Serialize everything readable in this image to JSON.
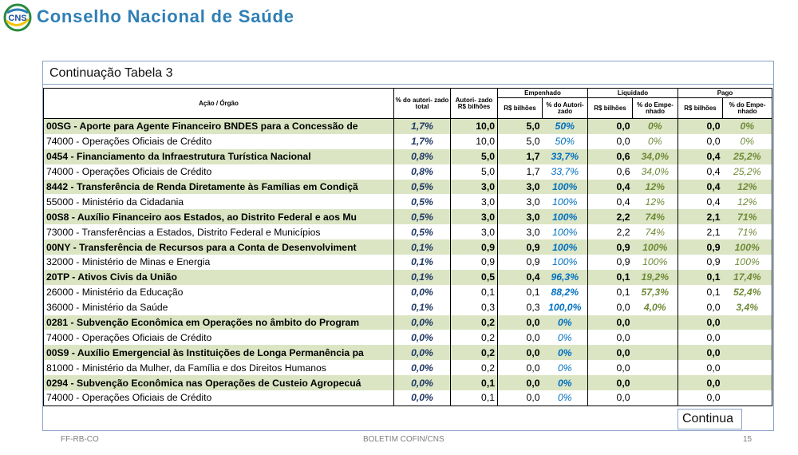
{
  "header": {
    "logo_text": "CNS",
    "org_name": "Conselho Nacional de Saúde"
  },
  "table_caption": "Continuação Tabela 3",
  "columns": {
    "acao": "Ação / Órgão",
    "pct_total": "% do autori- zado total",
    "autorizado": "Autori- zado R$ bilhões",
    "empenhado": "Empenhado",
    "liquidado": "Liquidado",
    "pago": "Pago",
    "rs_bilhoes": "R$ bilhões",
    "pct_autorizado": "% do Autori- zado",
    "pct_empenhado": "% do Empe- nhado"
  },
  "rows": [
    {
      "name": "00SG - Aporte para Agente Financeiro BNDES para a Concessão de",
      "pct": "1,7%",
      "aut": "10,0",
      "emp": "5,0",
      "emp_pct": "50%",
      "liq": "0,0",
      "liq_pct": "0%",
      "pago": "0,0",
      "pago_pct": "0%",
      "bold": true
    },
    {
      "name": "74000 - Operações Oficiais de Crédito",
      "pct": "1,7%",
      "aut": "10,0",
      "emp": "5,0",
      "emp_pct": "50%",
      "liq": "0,0",
      "liq_pct": "0%",
      "pago": "0,0",
      "pago_pct": "0%",
      "bold": false
    },
    {
      "name": "0454 - Financiamento da Infraestrutura Turística Nacional",
      "pct": "0,8%",
      "aut": "5,0",
      "emp": "1,7",
      "emp_pct": "33,7%",
      "liq": "0,6",
      "liq_pct": "34,0%",
      "pago": "0,4",
      "pago_pct": "25,2%",
      "bold": true
    },
    {
      "name": "74000 - Operações Oficiais de Crédito",
      "pct": "0,8%",
      "aut": "5,0",
      "emp": "1,7",
      "emp_pct": "33,7%",
      "liq": "0,6",
      "liq_pct": "34,0%",
      "pago": "0,4",
      "pago_pct": "25,2%",
      "bold": false
    },
    {
      "name": "8442 - Transferência de Renda Diretamente às Famílias em Condiçã",
      "pct": "0,5%",
      "aut": "3,0",
      "emp": "3,0",
      "emp_pct": "100%",
      "liq": "0,4",
      "liq_pct": "12%",
      "pago": "0,4",
      "pago_pct": "12%",
      "bold": true
    },
    {
      "name": "55000 - Ministério da Cidadania",
      "pct": "0,5%",
      "aut": "3,0",
      "emp": "3,0",
      "emp_pct": "100%",
      "liq": "0,4",
      "liq_pct": "12%",
      "pago": "0,4",
      "pago_pct": "12%",
      "bold": false
    },
    {
      "name": "00S8 - Auxílio Financeiro aos Estados, ao Distrito Federal e aos Mu",
      "pct": "0,5%",
      "aut": "3,0",
      "emp": "3,0",
      "emp_pct": "100%",
      "liq": "2,2",
      "liq_pct": "74%",
      "pago": "2,1",
      "pago_pct": "71%",
      "bold": true
    },
    {
      "name": "73000 - Transferências a Estados, Distrito Federal e Municípios",
      "pct": "0,5%",
      "aut": "3,0",
      "emp": "3,0",
      "emp_pct": "100%",
      "liq": "2,2",
      "liq_pct": "74%",
      "pago": "2,1",
      "pago_pct": "71%",
      "bold": false
    },
    {
      "name": "00NY - Transferência de Recursos para a Conta de Desenvolviment",
      "pct": "0,1%",
      "aut": "0,9",
      "emp": "0,9",
      "emp_pct": "100%",
      "liq": "0,9",
      "liq_pct": "100%",
      "pago": "0,9",
      "pago_pct": "100%",
      "bold": true
    },
    {
      "name": "32000 - Ministério de Minas e Energia",
      "pct": "0,1%",
      "aut": "0,9",
      "emp": "0,9",
      "emp_pct": "100%",
      "liq": "0,9",
      "liq_pct": "100%",
      "pago": "0,9",
      "pago_pct": "100%",
      "bold": false
    },
    {
      "name": "20TP - Ativos Civis da União",
      "pct": "0,1%",
      "aut": "0,5",
      "emp": "0,4",
      "emp_pct": "96,3%",
      "liq": "0,1",
      "liq_pct": "19,2%",
      "pago": "0,1",
      "pago_pct": "17,4%",
      "bold": true
    },
    {
      "name": "26000 - Ministério da Educação",
      "pct": "0,0%",
      "aut": "0,1",
      "emp": "0,1",
      "emp_pct": "88,2%",
      "liq": "0,1",
      "liq_pct": "57,3%",
      "pago": "0,1",
      "pago_pct": "52,4%",
      "bold": false,
      "boldpct": true
    },
    {
      "name": "36000 - Ministério da Saúde",
      "pct": "0,1%",
      "aut": "0,3",
      "emp": "0,3",
      "emp_pct": "100,0%",
      "liq": "0,0",
      "liq_pct": "4,0%",
      "pago": "0,0",
      "pago_pct": "3,4%",
      "bold": false,
      "boldpct": true
    },
    {
      "name": "0281 - Subvenção Econômica em Operações no âmbito do Program",
      "pct": "0,0%",
      "aut": "0,2",
      "emp": "0,0",
      "emp_pct": "0%",
      "liq": "0,0",
      "liq_pct": "",
      "pago": "0,0",
      "pago_pct": "",
      "bold": true
    },
    {
      "name": "74000 - Operações Oficiais de Crédito",
      "pct": "0,0%",
      "aut": "0,2",
      "emp": "0,0",
      "emp_pct": "0%",
      "liq": "0,0",
      "liq_pct": "",
      "pago": "0,0",
      "pago_pct": "",
      "bold": false
    },
    {
      "name": "00S9 - Auxílio Emergencial às Instituições de Longa Permanência pa",
      "pct": "0,0%",
      "aut": "0,2",
      "emp": "0,0",
      "emp_pct": "0%",
      "liq": "0,0",
      "liq_pct": "",
      "pago": "0,0",
      "pago_pct": "",
      "bold": true
    },
    {
      "name": "81000 - Ministério da Mulher, da Família e dos Direitos Humanos",
      "pct": "0,0%",
      "aut": "0,2",
      "emp": "0,0",
      "emp_pct": "0%",
      "liq": "0,0",
      "liq_pct": "",
      "pago": "0,0",
      "pago_pct": "",
      "bold": false
    },
    {
      "name": "0294 - Subvenção Econômica nas Operações de Custeio Agropecuá",
      "pct": "0,0%",
      "aut": "0,1",
      "emp": "0,0",
      "emp_pct": "0%",
      "liq": "0,0",
      "liq_pct": "",
      "pago": "0,0",
      "pago_pct": "",
      "bold": true
    },
    {
      "name": "74000 - Operações Oficiais de Crédito",
      "pct": "0,0%",
      "aut": "0,1",
      "emp": "0,0",
      "emp_pct": "0%",
      "liq": "0,0",
      "liq_pct": "",
      "pago": "0,0",
      "pago_pct": "",
      "bold": false
    }
  ],
  "continua_label": "Continua",
  "footer": {
    "left": "FF-RB-CO",
    "center": "BOLETIM COFIN/CNS",
    "page": "15"
  }
}
